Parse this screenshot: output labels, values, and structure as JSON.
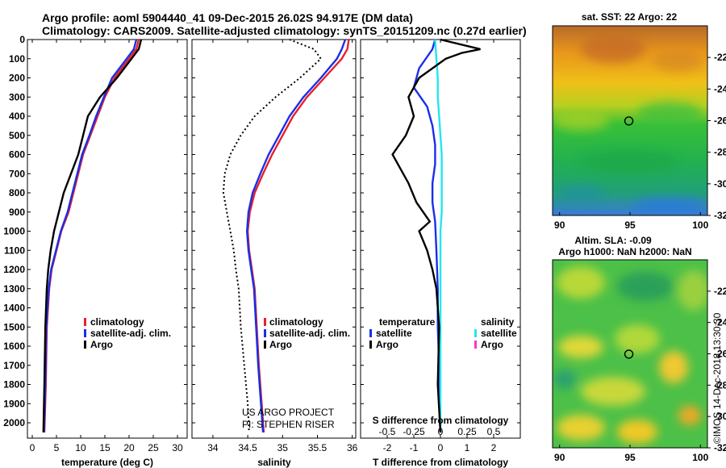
{
  "header": {
    "line1": "Argo profile: aoml 5904440_41 09-Dec-2015 26.02S 94.917E (DM data)",
    "line2": "Climatology: CARS2009. Satellite-adjusted climatology: synTS_20151209.nc (0.27d earlier)"
  },
  "colors": {
    "climatology": "#e8202a",
    "satellite": "#1a2ee8",
    "argo": "#000000",
    "sat_salinity": "#22e6f0",
    "argo_salinity": "#ff33cc"
  },
  "chart_data": [
    {
      "type": "line",
      "name": "temperature",
      "xlabel": "temperature (deg C)",
      "xlim": [
        -1,
        32
      ],
      "xticks": [
        "0",
        "5",
        "10",
        "15",
        "20",
        "25",
        "30"
      ],
      "xtick_values": [
        0,
        5,
        10,
        15,
        20,
        25,
        30
      ],
      "ylim": [
        0,
        2080
      ],
      "yticks": [
        "0",
        "100",
        "200",
        "300",
        "400",
        "500",
        "600",
        "700",
        "800",
        "900",
        "1000",
        "1100",
        "1200",
        "1300",
        "1400",
        "1500",
        "1600",
        "1700",
        "1800",
        "1900",
        "2000"
      ],
      "ytick_values": [
        0,
        100,
        200,
        300,
        400,
        500,
        600,
        700,
        800,
        900,
        1000,
        1100,
        1200,
        1300,
        1400,
        1500,
        1600,
        1700,
        1800,
        1900,
        2000
      ],
      "legend": [
        "climatology",
        "satellite-adj. clim.",
        "Argo"
      ],
      "series": [
        {
          "name": "climatology",
          "color": "#e8202a",
          "x": [
            22.0,
            21.5,
            20.0,
            17.0,
            15.0,
            13.5,
            12.0,
            10.5,
            9.5,
            8.5,
            7.5,
            6.0,
            5.0,
            4.0,
            3.5,
            3.0,
            2.8,
            2.5
          ],
          "y": [
            0,
            50,
            100,
            200,
            300,
            400,
            500,
            600,
            700,
            800,
            900,
            1000,
            1100,
            1200,
            1300,
            1500,
            1800,
            2050
          ]
        },
        {
          "name": "satellite-adj. clim.",
          "color": "#1a2ee8",
          "x": [
            21.5,
            21.0,
            19.5,
            16.5,
            14.8,
            13.2,
            11.8,
            10.3,
            9.3,
            8.3,
            7.3,
            5.9,
            4.9,
            3.9,
            3.4,
            2.9,
            2.7,
            2.4
          ],
          "y": [
            0,
            50,
            100,
            200,
            300,
            400,
            500,
            600,
            700,
            800,
            900,
            1000,
            1100,
            1200,
            1300,
            1500,
            1800,
            2050
          ]
        },
        {
          "name": "Argo",
          "color": "#000000",
          "x": [
            22.5,
            22.0,
            20.5,
            17.5,
            14.0,
            11.5,
            10.5,
            9.5,
            8.0,
            6.5,
            5.5,
            4.5,
            3.8,
            3.3,
            3.0,
            2.7,
            2.5,
            2.3
          ],
          "y": [
            0,
            50,
            100,
            200,
            300,
            400,
            500,
            600,
            700,
            800,
            900,
            1000,
            1100,
            1200,
            1300,
            1500,
            1800,
            2050
          ]
        }
      ]
    },
    {
      "type": "line",
      "name": "salinity",
      "xlabel": "salinity",
      "xlim": [
        33.7,
        36.05
      ],
      "xticks": [
        "34",
        "34.5",
        "35",
        "35.5",
        "36"
      ],
      "xtick_values": [
        34,
        34.5,
        35,
        35.5,
        36
      ],
      "ylim": [
        0,
        2080
      ],
      "legend": [
        "climatology",
        "satellite-adj. clim.",
        "Argo"
      ],
      "credits": [
        "US ARGO PROJECT",
        "PI: STEPHEN RISER"
      ],
      "series": [
        {
          "name": "climatology",
          "color": "#e8202a",
          "x": [
            35.95,
            35.93,
            35.85,
            35.6,
            35.35,
            35.15,
            35.0,
            34.85,
            34.72,
            34.6,
            34.53,
            34.5,
            34.52,
            34.56,
            34.6,
            34.63,
            34.66,
            34.7,
            34.73
          ],
          "y": [
            0,
            50,
            100,
            200,
            300,
            400,
            500,
            600,
            700,
            800,
            900,
            1000,
            1100,
            1200,
            1300,
            1500,
            1700,
            1900,
            2050
          ]
        },
        {
          "name": "satellite-adj. clim.",
          "color": "#1a2ee8",
          "x": [
            35.9,
            35.85,
            35.78,
            35.55,
            35.3,
            35.1,
            34.95,
            34.8,
            34.68,
            34.57,
            34.51,
            34.49,
            34.51,
            34.55,
            34.59,
            34.62,
            34.65,
            34.69,
            34.72
          ],
          "y": [
            0,
            50,
            100,
            200,
            300,
            400,
            500,
            600,
            700,
            800,
            900,
            1000,
            1100,
            1200,
            1300,
            1500,
            1700,
            1900,
            2050
          ]
        },
        {
          "name": "Argo",
          "color": "#000000",
          "dash": true,
          "x": [
            35.1,
            35.45,
            35.55,
            35.25,
            34.9,
            34.6,
            34.4,
            34.25,
            34.17,
            34.15,
            34.2,
            34.25,
            34.3,
            34.33,
            34.37,
            34.4,
            34.45,
            34.5,
            34.52
          ],
          "y": [
            0,
            50,
            100,
            200,
            300,
            400,
            500,
            600,
            700,
            800,
            900,
            1000,
            1100,
            1200,
            1300,
            1500,
            1700,
            1900,
            2050
          ]
        }
      ]
    },
    {
      "type": "line",
      "name": "differences",
      "xlabel": "T difference from climatology",
      "upper_xlabel": "S difference from climatology",
      "xlim": [
        -3,
        3
      ],
      "xticks": [
        "-2",
        "-1",
        "0",
        "1",
        "2"
      ],
      "xtick_values": [
        -2,
        -1,
        0,
        1,
        2
      ],
      "s_xticks": [
        "-0.5",
        "-0.25",
        "0",
        "0.25",
        "0.5"
      ],
      "s_xtick_values": [
        -0.5,
        -0.25,
        0,
        0.25,
        0.5
      ],
      "ylim": [
        0,
        2080
      ],
      "legend_temperature": {
        "heading": "temperature",
        "items": [
          "satellite",
          "Argo"
        ]
      },
      "legend_salinity": {
        "heading": "salinity",
        "items": [
          "satellite",
          "Argo"
        ]
      },
      "series": [
        {
          "name": "T satellite",
          "color": "#1a2ee8",
          "x": [
            -0.2,
            -0.3,
            -0.8,
            -1.0,
            -0.5,
            -0.3,
            -0.2,
            -0.2,
            -0.3,
            -0.3,
            -0.2,
            -0.15,
            -0.1,
            -0.1,
            -0.05,
            -0.05,
            0.0
          ],
          "y": [
            0,
            50,
            150,
            250,
            350,
            450,
            550,
            650,
            750,
            850,
            950,
            1100,
            1300,
            1500,
            1700,
            1900,
            2050
          ]
        },
        {
          "name": "S satellite",
          "color": "#22e6f0",
          "x": [
            -0.2,
            -0.15,
            -0.1,
            -0.1,
            -0.05,
            0.0,
            0.05,
            0.05,
            0.05,
            0.05,
            0.0,
            0.0,
            0.0,
            0.0,
            0.0,
            0.0
          ],
          "y": [
            0,
            100,
            200,
            300,
            400,
            500,
            600,
            700,
            800,
            900,
            1000,
            1200,
            1400,
            1600,
            1800,
            2050
          ]
        },
        {
          "name": "T Argo",
          "color": "#000000",
          "x": [
            0.0,
            1.5,
            0.8,
            0.2,
            -0.8,
            -1.2,
            -1.0,
            -1.3,
            -1.8,
            -1.2,
            -0.9,
            -0.4,
            -0.8,
            -0.5,
            -0.3,
            -0.15,
            -0.05,
            -0.1,
            0.0
          ],
          "y": [
            0,
            50,
            70,
            100,
            200,
            300,
            400,
            500,
            600,
            750,
            850,
            950,
            1000,
            1100,
            1200,
            1300,
            1500,
            1800,
            2050
          ]
        }
      ]
    },
    {
      "type": "heatmap",
      "name": "sst_map",
      "title": "sat. SST: 22 Argo: 22",
      "xlim": [
        89.5,
        100.5
      ],
      "ylim": [
        -32,
        -20
      ],
      "xticks": [
        "90",
        "95",
        "100"
      ],
      "xtick_values": [
        90,
        95,
        100
      ],
      "yticks": [
        "-22",
        "-24",
        "-26",
        "-28",
        "-30",
        "-32"
      ],
      "ytick_values": [
        -22,
        -24,
        -26,
        -28,
        -30,
        -32
      ],
      "marker": {
        "lon": 94.917,
        "lat": -26.02
      }
    },
    {
      "type": "heatmap",
      "name": "sla_map",
      "title": "Altim. SLA: -0.09",
      "subtitle": "Argo h1000: NaN h2000: NaN",
      "xlim": [
        89.5,
        100.5
      ],
      "ylim": [
        -32,
        -20
      ],
      "xticks": [
        "90",
        "95",
        "100"
      ],
      "xtick_values": [
        90,
        95,
        100
      ],
      "yticks": [
        "-22",
        "-24",
        "-26",
        "-28",
        "-30",
        "-32"
      ],
      "ytick_values": [
        -22,
        -24,
        -26,
        -28,
        -30,
        -32
      ],
      "marker": {
        "lon": 94.917,
        "lat": -26.02
      }
    }
  ],
  "footer": {
    "stamp": "©IMOS 14-Dec-2018 13:30:30"
  }
}
